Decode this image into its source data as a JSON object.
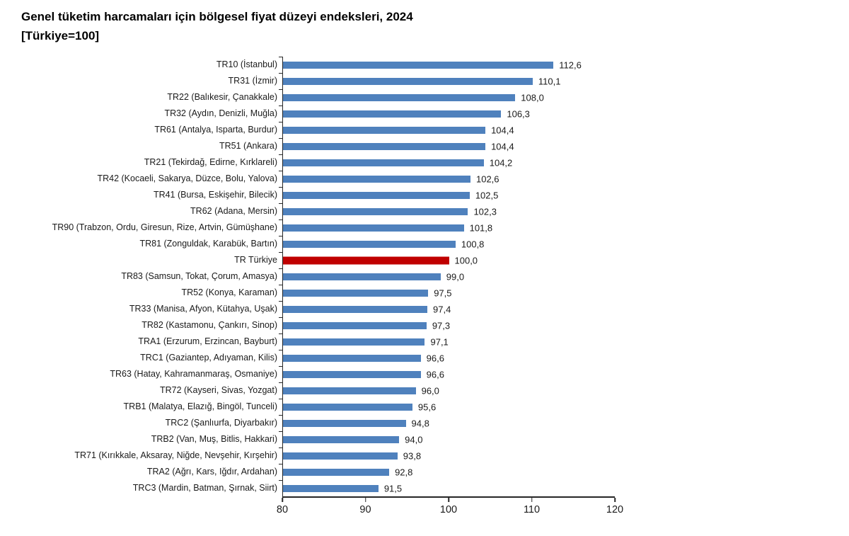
{
  "title": {
    "line1": "Genel tüketim harcamaları için bölgesel fiyat düzeyi endeksleri, 2024",
    "line2": "[Türkiye=100]"
  },
  "colors": {
    "bar": "#4f81bd",
    "highlight": "#c00000",
    "axis": "#262626",
    "text": "#1a1a1a"
  },
  "chart_data": {
    "type": "bar",
    "orientation": "horizontal",
    "title": "Genel tüketim harcamaları için bölgesel fiyat düzeyi endeksleri, 2024",
    "subtitle": "[Türkiye=100]",
    "categories": [
      "TR10 (İstanbul)",
      "TR31 (İzmir)",
      "TR22 (Balıkesir, Çanakkale)",
      "TR32 (Aydın, Denizli, Muğla)",
      "TR61 (Antalya, Isparta, Burdur)",
      "TR51 (Ankara)",
      "TR21 (Tekirdağ, Edirne, Kırklareli)",
      "TR42 (Kocaeli, Sakarya, Düzce, Bolu, Yalova)",
      "TR41 (Bursa, Eskişehir, Bilecik)",
      "TR62 (Adana, Mersin)",
      "TR90 (Trabzon, Ordu, Giresun, Rize, Artvin, Gümüşhane)",
      "TR81 (Zonguldak, Karabük, Bartın)",
      "TR Türkiye",
      "TR83 (Samsun, Tokat, Çorum, Amasya)",
      "TR52 (Konya, Karaman)",
      "TR33 (Manisa, Afyon, Kütahya, Uşak)",
      "TR82 (Kastamonu, Çankırı, Sinop)",
      "TRA1 (Erzurum, Erzincan, Bayburt)",
      "TRC1 (Gaziantep, Adıyaman, Kilis)",
      "TR63 (Hatay, Kahramanmaraş, Osmaniye)",
      "TR72 (Kayseri, Sivas, Yozgat)",
      "TRB1 (Malatya, Elazığ, Bingöl, Tunceli)",
      "TRC2 (Şanlıurfa, Diyarbakır)",
      "TRB2 (Van, Muş, Bitlis, Hakkari)",
      "TR71 (Kırıkkale, Aksaray, Niğde, Nevşehir, Kırşehir)",
      "TRA2 (Ağrı, Kars, Iğdır, Ardahan)",
      "TRC3 (Mardin, Batman, Şırnak, Siirt)"
    ],
    "values": [
      112.6,
      110.1,
      108.0,
      106.3,
      104.4,
      104.4,
      104.2,
      102.6,
      102.5,
      102.3,
      101.8,
      100.8,
      100.0,
      99.0,
      97.5,
      97.4,
      97.3,
      97.1,
      96.6,
      96.6,
      96.0,
      95.6,
      94.8,
      94.0,
      93.8,
      92.8,
      91.5
    ],
    "value_labels": [
      "112,6",
      "110,1",
      "108,0",
      "106,3",
      "104,4",
      "104,4",
      "104,2",
      "102,6",
      "102,5",
      "102,3",
      "101,8",
      "100,8",
      "100,0",
      "99,0",
      "97,5",
      "97,4",
      "97,3",
      "97,1",
      "96,6",
      "96,6",
      "96,0",
      "95,6",
      "94,8",
      "94,0",
      "93,8",
      "92,8",
      "91,5"
    ],
    "highlight_category": "TR Türkiye",
    "highlight_index": 12,
    "xlim": [
      80,
      120
    ],
    "x_ticks": [
      80,
      90,
      100,
      110,
      120
    ],
    "grid": false,
    "legend": false
  }
}
